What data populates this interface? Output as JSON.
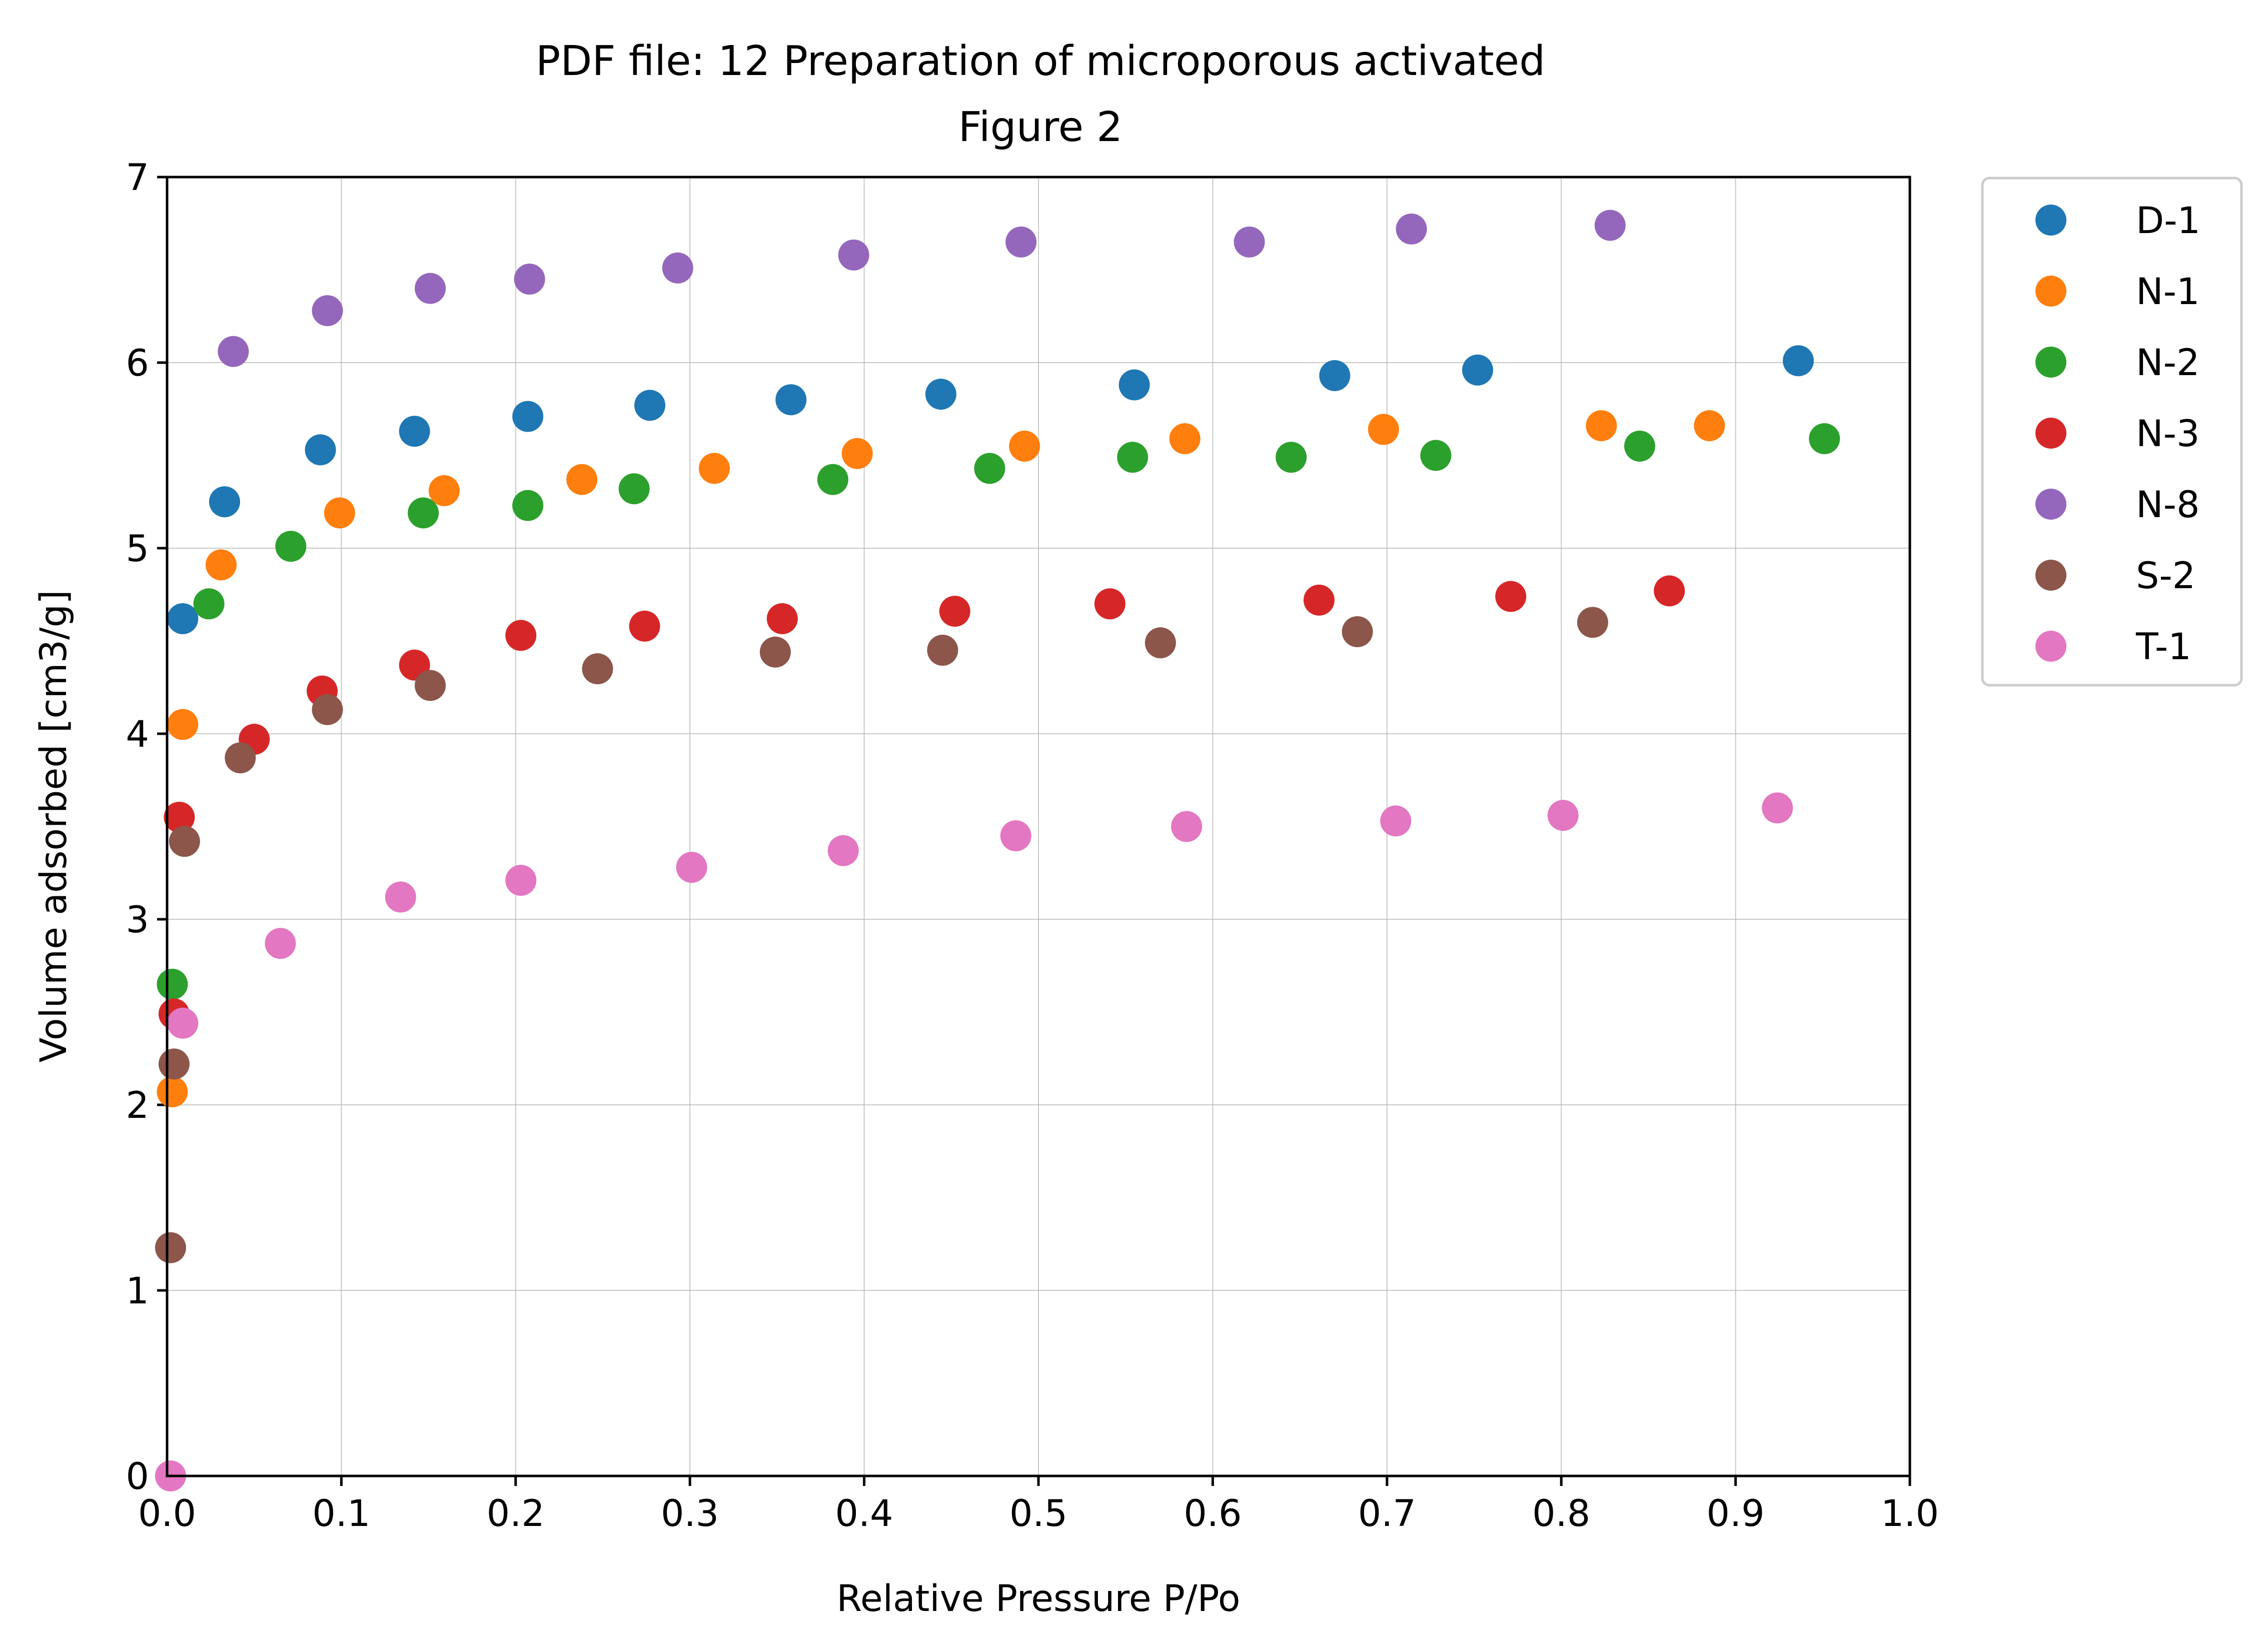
{
  "chart_data": {
    "type": "scatter",
    "title": "PDF file: 12 Preparation of microporous activated",
    "subtitle": "Figure 2",
    "xlabel": "Relative Pressure P/Po",
    "ylabel": "Volume adsorbed [cm3/g]",
    "xlim": [
      0,
      1
    ],
    "ylim": [
      0,
      7
    ],
    "xticks": [
      "0.0",
      "0.1",
      "0.2",
      "0.3",
      "0.4",
      "0.5",
      "0.6",
      "0.7",
      "0.8",
      "0.9",
      "1.0"
    ],
    "yticks": [
      "0",
      "1",
      "2",
      "3",
      "4",
      "5",
      "6",
      "7"
    ],
    "grid": true,
    "legend_position": "outside-top-right",
    "series": [
      {
        "name": "D-1",
        "color": "#1f77b4",
        "x": [
          0.009,
          0.033,
          0.088,
          0.142,
          0.207,
          0.277,
          0.358,
          0.444,
          0.555,
          0.67,
          0.752,
          0.936
        ],
        "y": [
          4.62,
          5.25,
          5.53,
          5.63,
          5.71,
          5.77,
          5.8,
          5.83,
          5.88,
          5.93,
          5.96,
          6.01
        ]
      },
      {
        "name": "N-1",
        "color": "#ff7f0e",
        "x": [
          0.003,
          0.009,
          0.031,
          0.099,
          0.159,
          0.238,
          0.314,
          0.396,
          0.492,
          0.584,
          0.698,
          0.823,
          0.885
        ],
        "y": [
          2.07,
          4.05,
          4.91,
          5.19,
          5.31,
          5.37,
          5.43,
          5.51,
          5.55,
          5.59,
          5.64,
          5.66,
          5.66
        ]
      },
      {
        "name": "N-2",
        "color": "#2ca02c",
        "x": [
          0.003,
          0.024,
          0.071,
          0.147,
          0.207,
          0.268,
          0.382,
          0.472,
          0.554,
          0.645,
          0.728,
          0.845,
          0.951
        ],
        "y": [
          2.65,
          4.7,
          5.01,
          5.19,
          5.23,
          5.32,
          5.37,
          5.43,
          5.49,
          5.49,
          5.5,
          5.55,
          5.59
        ]
      },
      {
        "name": "N-3",
        "color": "#d62728",
        "x": [
          0.004,
          0.007,
          0.05,
          0.089,
          0.142,
          0.203,
          0.274,
          0.353,
          0.452,
          0.541,
          0.661,
          0.771,
          0.862
        ],
        "y": [
          2.49,
          3.55,
          3.97,
          4.23,
          4.37,
          4.53,
          4.58,
          4.62,
          4.66,
          4.7,
          4.72,
          4.74,
          4.77
        ]
      },
      {
        "name": "N-8",
        "color": "#9467bd",
        "x": [
          0.038,
          0.092,
          0.151,
          0.208,
          0.293,
          0.394,
          0.49,
          0.621,
          0.714,
          0.828
        ],
        "y": [
          6.06,
          6.28,
          6.4,
          6.45,
          6.51,
          6.58,
          6.65,
          6.65,
          6.72,
          6.74
        ]
      },
      {
        "name": "S-2",
        "color": "#8c564b",
        "x": [
          0.002,
          0.004,
          0.01,
          0.042,
          0.092,
          0.151,
          0.247,
          0.349,
          0.445,
          0.57,
          0.683,
          0.818
        ],
        "y": [
          1.23,
          2.22,
          3.42,
          3.87,
          4.13,
          4.26,
          4.35,
          4.44,
          4.45,
          4.49,
          4.55,
          4.6
        ]
      },
      {
        "name": "T-1",
        "color": "#e377c2",
        "x": [
          0.002,
          0.009,
          0.065,
          0.134,
          0.203,
          0.301,
          0.388,
          0.487,
          0.585,
          0.705,
          0.801,
          0.924
        ],
        "y": [
          0.0,
          2.44,
          2.87,
          3.12,
          3.21,
          3.28,
          3.37,
          3.45,
          3.5,
          3.53,
          3.56,
          3.6
        ]
      }
    ]
  }
}
